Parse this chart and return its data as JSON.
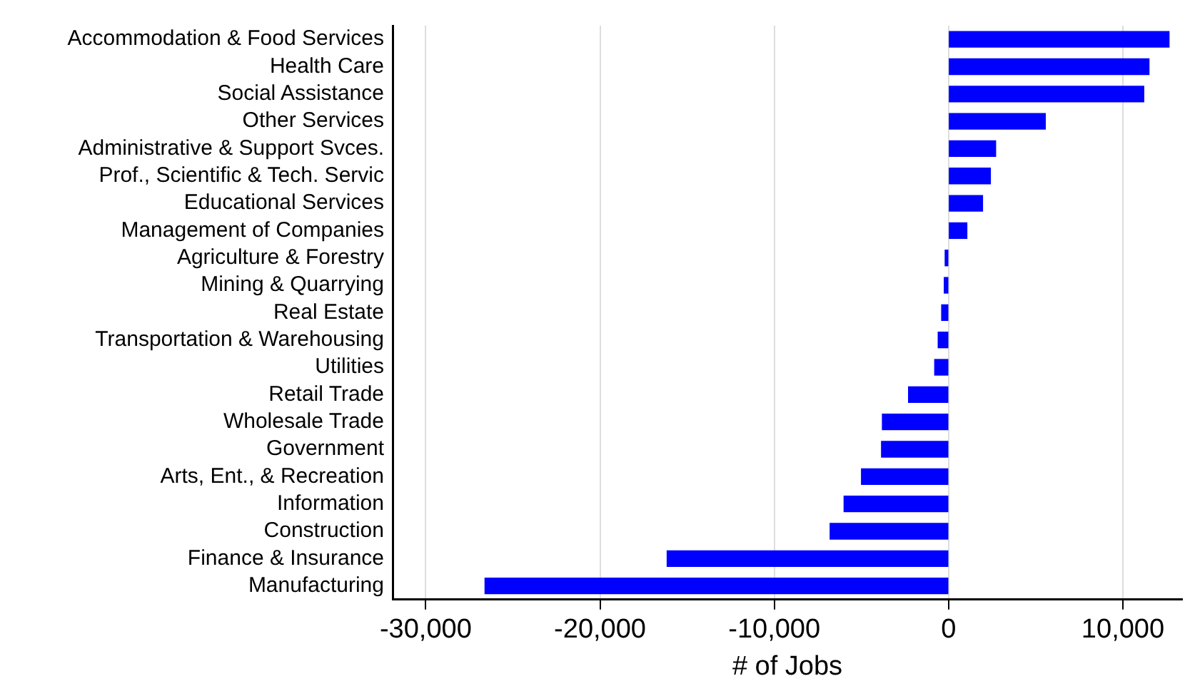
{
  "chart_data": {
    "type": "bar",
    "orientation": "horizontal",
    "xlabel": "# of Jobs",
    "categories": [
      "Accommodation & Food Services",
      "Health Care",
      "Social Assistance",
      "Other Services",
      "Administrative & Support Svces.",
      "Prof., Scientific & Tech. Servic",
      "Educational Services",
      "Management of Companies",
      "Agriculture & Forestry",
      "Mining & Quarrying",
      "Real Estate",
      "Transportation & Warehousing",
      "Utilities",
      "Retail Trade",
      "Wholesale Trade",
      "Government",
      "Arts, Ent., & Recreation",
      "Information",
      "Construction",
      "Finance & Insurance",
      "Manufacturing"
    ],
    "values": [
      12650,
      11500,
      11200,
      5550,
      2700,
      2400,
      1950,
      1050,
      -200,
      -250,
      -400,
      -600,
      -800,
      -2300,
      -3800,
      -3850,
      -5000,
      -6000,
      -6800,
      -16150,
      -26600
    ],
    "color": "#0000ff",
    "xlim": [
      -31900,
      13400
    ],
    "xticks": [
      {
        "value": -30000,
        "label": "-30,000"
      },
      {
        "value": -20000,
        "label": "-20,000"
      },
      {
        "value": -10000,
        "label": "-10,000"
      },
      {
        "value": 0,
        "label": "0"
      },
      {
        "value": 10000,
        "label": "10,000"
      }
    ],
    "grid": "x",
    "legend": false
  }
}
